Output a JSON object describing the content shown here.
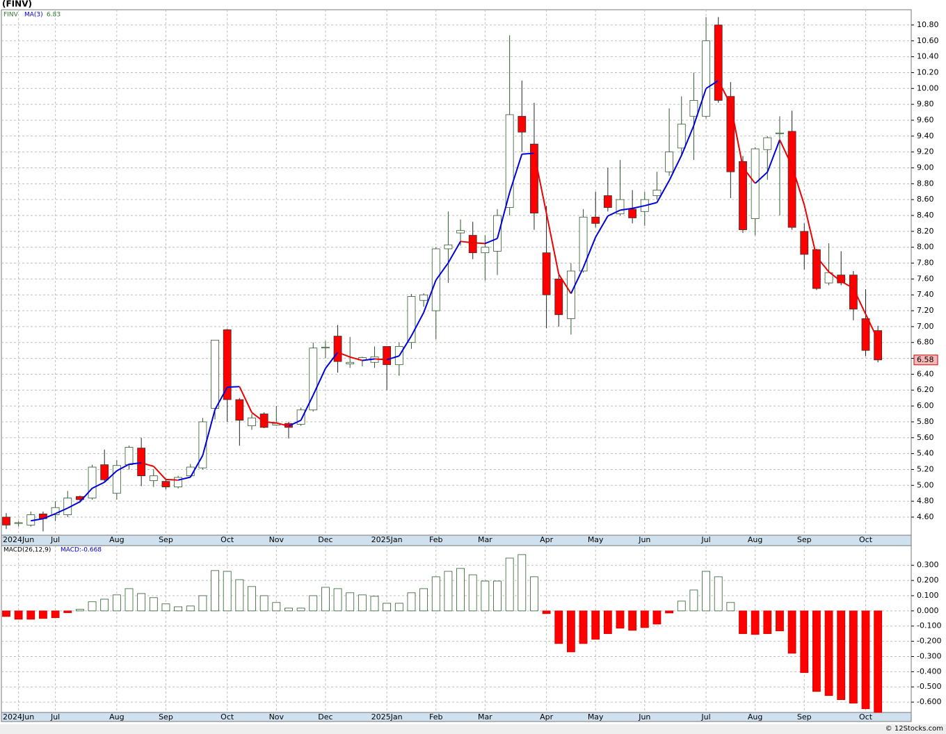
{
  "chart_data": {
    "type": "candlestick",
    "title": "(FINV)",
    "symbol": "FINV",
    "ma_label": "MA(3)",
    "ma_value": 6.83,
    "categories": [
      null,
      "2024Jun",
      null,
      null,
      "Jul",
      null,
      null,
      null,
      null,
      "Aug",
      null,
      null,
      null,
      "Sep",
      null,
      null,
      null,
      null,
      "Oct",
      null,
      null,
      null,
      "Nov",
      null,
      null,
      null,
      "Dec",
      null,
      null,
      null,
      null,
      "2025Jan",
      null,
      null,
      null,
      "Feb",
      null,
      null,
      null,
      "Mar",
      null,
      null,
      null,
      null,
      "Apr",
      null,
      null,
      null,
      "May",
      null,
      null,
      null,
      "Jun",
      null,
      null,
      null,
      null,
      "Jul",
      null,
      null,
      null,
      "Aug",
      null,
      null,
      null,
      "Sep",
      null,
      null,
      null,
      null,
      "Oct",
      null
    ],
    "open": [
      4.6,
      4.52,
      4.5,
      4.64,
      4.63,
      4.63,
      4.86,
      4.84,
      5.26,
      4.9,
      5.26,
      5.47,
      5.06,
      5.05,
      4.98,
      5.12,
      5.22,
      5.97,
      6.96,
      6.08,
      5.75,
      5.9,
      5.76,
      5.78,
      5.77,
      5.95,
      6.73,
      6.88,
      6.53,
      6.58,
      6.55,
      6.75,
      6.52,
      6.8,
      7.33,
      7.2,
      7.98,
      8.18,
      8.15,
      7.93,
      7.95,
      8.5,
      9.65,
      9.3,
      7.93,
      7.6,
      7.1,
      7.7,
      8.38,
      8.65,
      8.42,
      8.48,
      8.45,
      8.65,
      8.95,
      9.25,
      9.65,
      9.65,
      10.8,
      9.9,
      9.08,
      8.36,
      9.23,
      9.43,
      9.46,
      8.2,
      7.97,
      7.55,
      7.65,
      7.65,
      7.1,
      6.95
    ],
    "high": [
      4.65,
      4.55,
      4.67,
      4.67,
      4.8,
      4.93,
      4.87,
      5.26,
      5.45,
      5.32,
      5.5,
      5.6,
      5.2,
      5.07,
      5.12,
      5.27,
      5.85,
      6.83,
      6.97,
      6.1,
      5.9,
      5.92,
      6.0,
      5.8,
      5.98,
      6.8,
      6.82,
      7.02,
      6.87,
      6.62,
      6.75,
      6.75,
      6.8,
      7.41,
      7.42,
      8.0,
      8.45,
      8.35,
      8.32,
      8.15,
      8.48,
      10.67,
      10.1,
      9.82,
      8.52,
      7.65,
      7.8,
      8.48,
      8.7,
      9.0,
      9.1,
      8.72,
      8.7,
      8.95,
      9.75,
      9.9,
      10.2,
      10.9,
      10.9,
      10.08,
      9.15,
      9.26,
      9.4,
      9.65,
      9.72,
      8.3,
      7.98,
      8.05,
      7.95,
      7.7,
      7.47,
      7.01
    ],
    "low": [
      4.45,
      4.48,
      4.48,
      4.42,
      4.55,
      4.6,
      4.78,
      4.82,
      5.05,
      4.82,
      5.2,
      4.99,
      4.98,
      4.95,
      4.96,
      5.1,
      5.2,
      5.83,
      5.8,
      5.5,
      5.7,
      5.72,
      5.75,
      5.59,
      5.75,
      5.93,
      6.6,
      6.42,
      6.48,
      6.5,
      6.48,
      6.2,
      6.38,
      6.72,
      7.25,
      6.84,
      7.55,
      8.02,
      7.85,
      7.58,
      7.65,
      8.4,
      9.2,
      8.22,
      6.98,
      7.0,
      6.9,
      7.68,
      8.25,
      8.45,
      8.4,
      8.3,
      8.27,
      8.6,
      8.9,
      9.15,
      9.1,
      9.62,
      9.82,
      8.62,
      8.18,
      8.15,
      8.85,
      8.4,
      8.22,
      7.72,
      7.46,
      7.52,
      7.52,
      7.08,
      6.63,
      6.55
    ],
    "close": [
      4.5,
      4.53,
      4.63,
      4.58,
      4.72,
      4.84,
      4.82,
      5.23,
      5.07,
      5.25,
      5.48,
      5.12,
      5.12,
      4.98,
      5.1,
      5.23,
      5.8,
      6.83,
      6.08,
      5.82,
      5.85,
      5.73,
      5.78,
      5.73,
      5.95,
      6.73,
      6.74,
      6.56,
      6.55,
      6.61,
      6.62,
      6.52,
      6.75,
      7.38,
      7.4,
      7.98,
      8.03,
      8.21,
      7.93,
      8.0,
      8.4,
      9.67,
      9.45,
      8.43,
      7.4,
      7.15,
      7.7,
      8.38,
      8.3,
      8.5,
      8.6,
      8.37,
      8.6,
      8.72,
      9.2,
      9.55,
      9.85,
      10.6,
      9.85,
      8.95,
      8.22,
      9.24,
      9.38,
      9.44,
      8.25,
      7.91,
      7.48,
      7.68,
      7.55,
      7.22,
      6.7,
      6.58
    ],
    "ylim": [
      4.372,
      10.992
    ],
    "yticks": [
      {
        "value": 4.6,
        "label": "4.60"
      },
      {
        "value": 4.8,
        "label": "4.80"
      },
      {
        "value": 5.0,
        "label": "5.00"
      },
      {
        "value": 5.2,
        "label": "5.20"
      },
      {
        "value": 5.4,
        "label": "5.40"
      },
      {
        "value": 5.6,
        "label": "5.60"
      },
      {
        "value": 5.8,
        "label": "5.80"
      },
      {
        "value": 6.0,
        "label": "6.00"
      },
      {
        "value": 6.2,
        "label": "6.20"
      },
      {
        "value": 6.4,
        "label": "6.40"
      },
      {
        "value": 6.6,
        "label": "6.60"
      },
      {
        "value": 6.8,
        "label": "6.80"
      },
      {
        "value": 7.0,
        "label": "7.00"
      },
      {
        "value": 7.2,
        "label": "7.20"
      },
      {
        "value": 7.4,
        "label": "7.40"
      },
      {
        "value": 7.6,
        "label": "7.60"
      },
      {
        "value": 7.8,
        "label": "7.80"
      },
      {
        "value": 8.0,
        "label": "8.00"
      },
      {
        "value": 8.2,
        "label": "8.20"
      },
      {
        "value": 8.4,
        "label": "8.40"
      },
      {
        "value": 8.6,
        "label": "8.60"
      },
      {
        "value": 8.8,
        "label": "8.80"
      },
      {
        "value": 9.0,
        "label": "9.00"
      },
      {
        "value": 9.2,
        "label": "9.20"
      },
      {
        "value": 9.4,
        "label": "9.40"
      },
      {
        "value": 9.6,
        "label": "9.60"
      },
      {
        "value": 9.8,
        "label": "9.80"
      },
      {
        "value": 10.0,
        "label": "10.00"
      },
      {
        "value": 10.2,
        "label": "10.20"
      },
      {
        "value": 10.4,
        "label": "10.40"
      },
      {
        "value": 10.6,
        "label": "10.60"
      },
      {
        "value": 10.8,
        "label": "10.80"
      }
    ],
    "macd": {
      "label": "MACD(26,12,9)",
      "value_label": "MACD:-0.668",
      "values": [
        -0.037,
        -0.055,
        -0.055,
        -0.05,
        -0.045,
        -0.012,
        0.01,
        0.06,
        0.077,
        0.105,
        0.146,
        0.114,
        0.087,
        0.046,
        0.027,
        0.032,
        0.1,
        0.265,
        0.26,
        0.205,
        0.16,
        0.1,
        0.055,
        0.018,
        0.018,
        0.1,
        0.155,
        0.146,
        0.119,
        0.105,
        0.096,
        0.05,
        0.05,
        0.119,
        0.146,
        0.224,
        0.26,
        0.279,
        0.237,
        0.196,
        0.196,
        0.347,
        0.37,
        0.224,
        -0.018,
        -0.215,
        -0.27,
        -0.215,
        -0.187,
        -0.15,
        -0.114,
        -0.128,
        -0.11,
        -0.087,
        -0.014,
        0.064,
        0.137,
        0.26,
        0.224,
        0.055,
        -0.15,
        -0.155,
        -0.15,
        -0.132,
        -0.279,
        -0.406,
        -0.53,
        -0.557,
        -0.584,
        -0.607,
        -0.644,
        -0.668
      ],
      "ylim": [
        -0.668,
        0.429
      ],
      "yticks": [
        {
          "value": 0.3,
          "label": "0.300"
        },
        {
          "value": 0.2,
          "label": "0.200"
        },
        {
          "value": 0.1,
          "label": "0.100"
        },
        {
          "value": 0,
          "label": "0.000"
        },
        {
          "value": -0.1,
          "label": "-0.100"
        },
        {
          "value": -0.2,
          "label": "-0.200"
        },
        {
          "value": -0.3,
          "label": "-0.300"
        },
        {
          "value": -0.4,
          "label": "-0.400"
        },
        {
          "value": -0.5,
          "label": "-0.500"
        },
        {
          "value": -0.6,
          "label": "-0.600"
        }
      ]
    },
    "up_color": "#ffffff",
    "up_stroke": "#2d5a2d",
    "down_color": "#ff0000",
    "ma_up_color": "#0000dd",
    "ma_down_color": "#ee0000",
    "grid": true,
    "copyright": "© 12Stocks.com"
  }
}
